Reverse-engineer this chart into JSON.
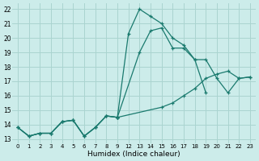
{
  "bg_color": "#ccecea",
  "grid_color": "#aad4d0",
  "line_color": "#1a7a6e",
  "xlim": [
    -0.5,
    21.5
  ],
  "ylim": [
    12.7,
    22.4
  ],
  "xtick_positions": [
    0,
    1,
    2,
    3,
    4,
    5,
    6,
    7,
    8,
    9,
    10,
    11,
    12,
    13,
    14,
    15,
    16,
    17,
    18,
    19,
    20,
    21
  ],
  "xtick_labels": [
    "0",
    "1",
    "2",
    "3",
    "4",
    "5",
    "6",
    "7",
    "8",
    "9",
    "12",
    "13",
    "14",
    "15",
    "16",
    "17",
    "18",
    "19",
    "20",
    "21",
    "22",
    "23"
  ],
  "yticks": [
    13,
    14,
    15,
    16,
    17,
    18,
    19,
    20,
    21,
    22
  ],
  "xlabel": "Humidex (Indice chaleur)",
  "shared_pos": [
    0,
    1,
    2,
    3,
    4,
    5,
    6,
    7,
    8,
    9
  ],
  "shared_y": [
    13.8,
    13.2,
    13.4,
    13.4,
    14.2,
    14.3,
    13.2,
    13.8,
    14.6,
    14.5
  ],
  "line1_pos": [
    9,
    11,
    12,
    13,
    14,
    15,
    16,
    17
  ],
  "line1_y": [
    14.5,
    19.0,
    20.5,
    20.7,
    19.3,
    19.3,
    18.5,
    16.2
  ],
  "line2_pos": [
    9,
    10,
    11,
    12,
    13,
    14,
    15,
    16,
    17,
    18,
    19,
    20,
    21
  ],
  "line2_y": [
    14.5,
    20.3,
    22.0,
    21.5,
    21.0,
    20.0,
    19.5,
    18.5,
    18.5,
    17.2,
    16.2,
    17.2,
    17.3
  ],
  "line3_pos": [
    9,
    13,
    14,
    15,
    16,
    17,
    18,
    19,
    20,
    21
  ],
  "line3_y": [
    14.5,
    15.2,
    15.5,
    16.0,
    16.5,
    17.2,
    17.5,
    17.7,
    17.2,
    17.3
  ]
}
